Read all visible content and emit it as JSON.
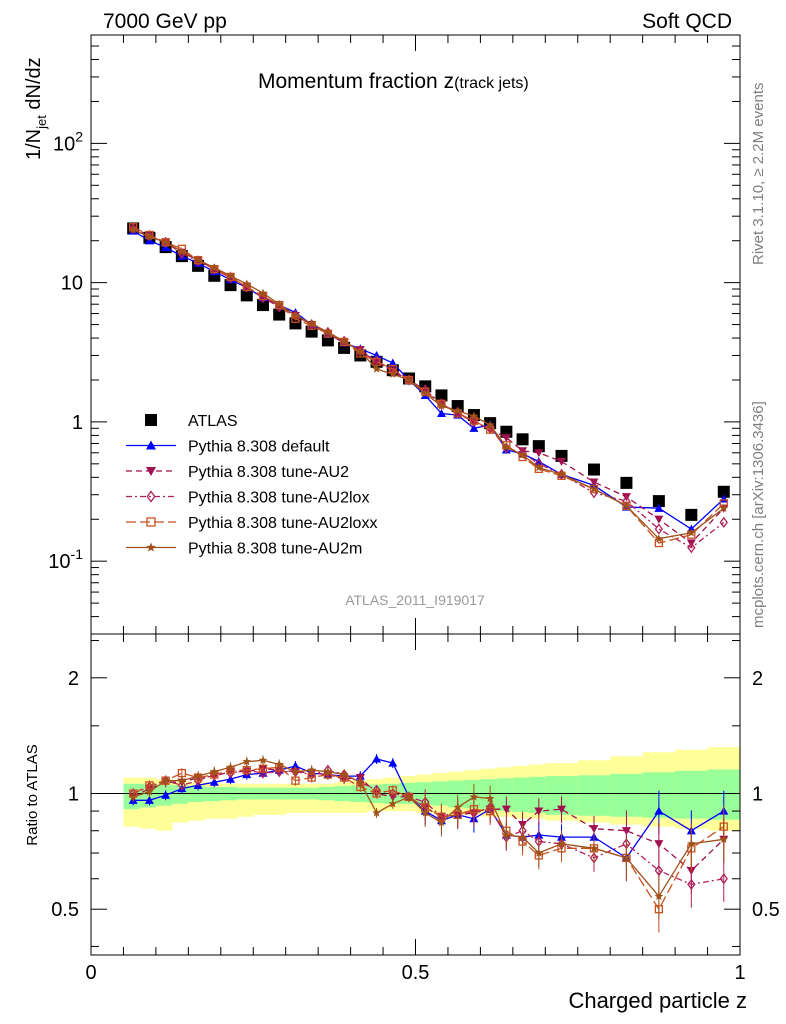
{
  "header": {
    "left": "7000 GeV pp",
    "right": "Soft QCD"
  },
  "side_labels": {
    "rivet": "Rivet 3.1.10, ≥ 2.2M events",
    "mcplots": "mcplots.cern.ch [arXiv:1306.3436]"
  },
  "chart_data": [
    {
      "panel": "main",
      "type": "scatter",
      "title_main": "Momentum fraction z",
      "title_sub": "(track jets)",
      "ylabel_main": "1/N",
      "ylabel_sub": "jet",
      "ylabel_tail": " dN/dz",
      "watermark": "ATLAS_2011_I919017",
      "yscale": "log",
      "xlim": [
        0,
        1
      ],
      "ylim": [
        0.03,
        600
      ],
      "y_tick_labels": [
        "10^-1",
        "1",
        "10",
        "10^2"
      ],
      "legend_position": "lower-left",
      "x": [
        0.065,
        0.09,
        0.115,
        0.14,
        0.165,
        0.19,
        0.215,
        0.24,
        0.265,
        0.29,
        0.315,
        0.34,
        0.365,
        0.39,
        0.415,
        0.44,
        0.465,
        0.49,
        0.515,
        0.54,
        0.565,
        0.59,
        0.615,
        0.64,
        0.665,
        0.69,
        0.725,
        0.775,
        0.825,
        0.875,
        0.925,
        0.975
      ],
      "series": [
        {
          "name": "ATLAS",
          "color": "#000000",
          "marker": "square",
          "line": "none",
          "values": [
            24.5,
            21,
            18,
            15.5,
            13.2,
            11.2,
            9.6,
            8.1,
            6.9,
            5.9,
            5.1,
            4.45,
            3.85,
            3.4,
            3.0,
            2.7,
            2.35,
            2.05,
            1.8,
            1.55,
            1.3,
            1.12,
            0.98,
            0.85,
            0.75,
            0.67,
            0.57,
            0.455,
            0.365,
            0.27,
            0.215,
            0.315
          ]
        },
        {
          "name": "Pythia 8.308 default",
          "color": "#0000ff",
          "marker": "triangle-up",
          "line": "solid",
          "values": [
            23.5,
            20,
            17.9,
            15.5,
            13.8,
            12,
            10.5,
            9.2,
            7.8,
            6.9,
            6.1,
            5.0,
            4.3,
            3.7,
            3.35,
            3.0,
            2.65,
            2.0,
            1.55,
            1.15,
            1.12,
            0.9,
            0.95,
            0.63,
            0.59,
            0.52,
            0.42,
            0.35,
            0.245,
            0.24,
            0.17,
            0.28
          ]
        },
        {
          "name": "Pythia 8.308 tune-AU2",
          "color": "#a0104f",
          "marker": "triangle-down",
          "line": "dashed",
          "values": [
            24,
            21.5,
            19.5,
            16.5,
            14.5,
            12.5,
            11,
            9.2,
            8.0,
            6.8,
            5.8,
            5.0,
            4.3,
            3.7,
            3.3,
            2.7,
            2.3,
            2.0,
            1.65,
            1.35,
            1.15,
            1.0,
            0.88,
            0.77,
            0.62,
            0.6,
            0.52,
            0.37,
            0.29,
            0.2,
            0.135,
            0.24
          ]
        },
        {
          "name": "Pythia 8.308 tune-AU2lox",
          "color": "#b0205a",
          "marker": "diamond",
          "line": "dashdot",
          "values": [
            24.5,
            21.8,
            19.5,
            16.2,
            14.3,
            12.5,
            10.8,
            9.3,
            7.8,
            6.7,
            5.8,
            5.0,
            4.4,
            3.8,
            3.2,
            2.75,
            2.35,
            2.0,
            1.7,
            1.35,
            1.17,
            1.0,
            0.9,
            0.65,
            0.6,
            0.5,
            0.42,
            0.31,
            0.27,
            0.17,
            0.125,
            0.19
          ]
        },
        {
          "name": "Pythia 8.308 tune-AU2loxx",
          "color": "#c85020",
          "marker": "open-square",
          "line": "longdash",
          "values": [
            25,
            22,
            19.5,
            17.5,
            14.5,
            12.5,
            11,
            9.3,
            8.0,
            6.9,
            5.5,
            4.9,
            4.3,
            3.75,
            3.1,
            2.7,
            2.4,
            2.0,
            1.65,
            1.35,
            1.15,
            1.02,
            0.88,
            0.68,
            0.56,
            0.46,
            0.41,
            0.33,
            0.25,
            0.135,
            0.155,
            0.26
          ]
        },
        {
          "name": "Pythia 8.308 tune-AU2m",
          "color": "#a0521a",
          "marker": "star",
          "line": "solid",
          "values": [
            24,
            21.3,
            19.5,
            16.7,
            14.6,
            12.8,
            11.2,
            9.8,
            8.4,
            7.0,
            5.8,
            5.1,
            4.4,
            3.8,
            3.2,
            2.4,
            2.2,
            2.0,
            1.6,
            1.3,
            1.2,
            1.1,
            0.95,
            0.66,
            0.58,
            0.47,
            0.42,
            0.33,
            0.25,
            0.145,
            0.16,
            0.24
          ]
        }
      ]
    },
    {
      "panel": "ratio",
      "type": "scatter",
      "xlabel": "Charged particle z",
      "ylabel": "Ratio to ATLAS",
      "yscale": "log",
      "xlim": [
        0,
        1
      ],
      "ylim": [
        0.38,
        2.6
      ],
      "x_tick_labels": [
        "0",
        "0.5",
        "1"
      ],
      "y_tick_labels": [
        "0.5",
        "1",
        "2"
      ],
      "band_edges": [
        0.05,
        0.075,
        0.1,
        0.125,
        0.15,
        0.175,
        0.2,
        0.225,
        0.25,
        0.275,
        0.3,
        0.325,
        0.35,
        0.375,
        0.4,
        0.425,
        0.45,
        0.475,
        0.5,
        0.525,
        0.55,
        0.575,
        0.6,
        0.625,
        0.65,
        0.675,
        0.7,
        0.75,
        0.8,
        0.85,
        0.9,
        0.95,
        1.0
      ],
      "band_stat_lo": [
        0.91,
        0.92,
        0.93,
        0.94,
        0.95,
        0.955,
        0.96,
        0.965,
        0.965,
        0.965,
        0.965,
        0.965,
        0.96,
        0.955,
        0.95,
        0.945,
        0.94,
        0.94,
        0.935,
        0.93,
        0.92,
        0.915,
        0.91,
        0.9,
        0.895,
        0.89,
        0.88,
        0.875,
        0.87,
        0.865,
        0.86,
        0.855
      ],
      "band_stat_hi": [
        1.06,
        1.06,
        1.055,
        1.05,
        1.045,
        1.04,
        1.04,
        1.035,
        1.035,
        1.035,
        1.035,
        1.035,
        1.04,
        1.045,
        1.05,
        1.055,
        1.06,
        1.065,
        1.07,
        1.075,
        1.08,
        1.085,
        1.09,
        1.095,
        1.1,
        1.105,
        1.11,
        1.115,
        1.125,
        1.135,
        1.145,
        1.155
      ],
      "band_tot_lo": [
        0.82,
        0.81,
        0.8,
        0.84,
        0.85,
        0.86,
        0.86,
        0.87,
        0.88,
        0.88,
        0.89,
        0.89,
        0.89,
        0.89,
        0.89,
        0.9,
        0.9,
        0.9,
        0.89,
        0.89,
        0.88,
        0.88,
        0.87,
        0.87,
        0.86,
        0.86,
        0.85,
        0.84,
        0.83,
        0.82,
        0.81,
        0.8
      ],
      "band_tot_hi": [
        1.1,
        1.1,
        1.09,
        1.08,
        1.07,
        1.07,
        1.06,
        1.06,
        1.06,
        1.06,
        1.06,
        1.06,
        1.06,
        1.07,
        1.08,
        1.09,
        1.1,
        1.11,
        1.12,
        1.13,
        1.14,
        1.15,
        1.16,
        1.17,
        1.18,
        1.19,
        1.2,
        1.22,
        1.25,
        1.28,
        1.3,
        1.32
      ],
      "x": [
        0.065,
        0.09,
        0.115,
        0.14,
        0.165,
        0.19,
        0.215,
        0.24,
        0.265,
        0.29,
        0.315,
        0.34,
        0.365,
        0.39,
        0.415,
        0.44,
        0.465,
        0.49,
        0.515,
        0.54,
        0.565,
        0.59,
        0.615,
        0.64,
        0.665,
        0.69,
        0.725,
        0.775,
        0.825,
        0.875,
        0.925,
        0.975
      ],
      "series": [
        {
          "name": "Pythia 8.308 default",
          "color": "#0000ff",
          "marker": "triangle-up",
          "line": "solid",
          "values": [
            0.96,
            0.96,
            0.99,
            1.03,
            1.05,
            1.07,
            1.09,
            1.12,
            1.13,
            1.15,
            1.18,
            1.13,
            1.12,
            1.11,
            1.11,
            1.23,
            1.2,
            0.98,
            0.9,
            0.85,
            0.88,
            0.86,
            0.91,
            0.78,
            0.77,
            0.78,
            0.77,
            0.77,
            0.68,
            0.9,
            0.8,
            0.9
          ]
        },
        {
          "name": "Pythia 8.308 tune-AU2",
          "color": "#a0104f",
          "marker": "triangle-down",
          "line": "dashed",
          "values": [
            0.98,
            1.03,
            1.07,
            1.07,
            1.1,
            1.11,
            1.14,
            1.14,
            1.16,
            1.15,
            1.14,
            1.13,
            1.12,
            1.09,
            1.1,
            1.0,
            0.98,
            0.98,
            0.92,
            0.87,
            0.88,
            0.89,
            0.91,
            0.91,
            0.83,
            0.9,
            0.91,
            0.81,
            0.8,
            0.74,
            0.63,
            0.76
          ]
        },
        {
          "name": "Pythia 8.308 tune-AU2lox",
          "color": "#b0205a",
          "marker": "diamond",
          "line": "dashdot",
          "values": [
            1.0,
            1.04,
            1.08,
            1.05,
            1.08,
            1.12,
            1.13,
            1.15,
            1.13,
            1.14,
            1.14,
            1.12,
            1.15,
            1.12,
            1.07,
            1.02,
            1.0,
            0.98,
            0.95,
            0.87,
            0.9,
            0.89,
            0.92,
            0.77,
            0.8,
            0.75,
            0.74,
            0.68,
            0.74,
            0.63,
            0.58,
            0.6
          ]
        },
        {
          "name": "Pythia 8.308 tune-AU2loxx",
          "color": "#c85020",
          "marker": "open-square",
          "line": "longdash",
          "values": [
            1.0,
            1.05,
            1.08,
            1.13,
            1.1,
            1.12,
            1.15,
            1.15,
            1.16,
            1.17,
            1.08,
            1.1,
            1.12,
            1.1,
            1.04,
            1.0,
            1.02,
            0.98,
            0.92,
            0.87,
            0.88,
            0.91,
            0.9,
            0.8,
            0.75,
            0.69,
            0.72,
            0.72,
            0.68,
            0.5,
            0.72,
            0.82
          ]
        },
        {
          "name": "Pythia 8.308 tune-AU2m",
          "color": "#a0521a",
          "marker": "star",
          "line": "solid",
          "values": [
            0.98,
            1.01,
            1.08,
            1.08,
            1.11,
            1.14,
            1.17,
            1.21,
            1.22,
            1.19,
            1.14,
            1.15,
            1.14,
            1.12,
            1.07,
            0.89,
            0.94,
            0.98,
            0.89,
            0.84,
            0.92,
            0.98,
            0.97,
            0.78,
            0.77,
            0.7,
            0.74,
            0.72,
            0.68,
            0.54,
            0.74,
            0.76
          ]
        }
      ]
    }
  ]
}
